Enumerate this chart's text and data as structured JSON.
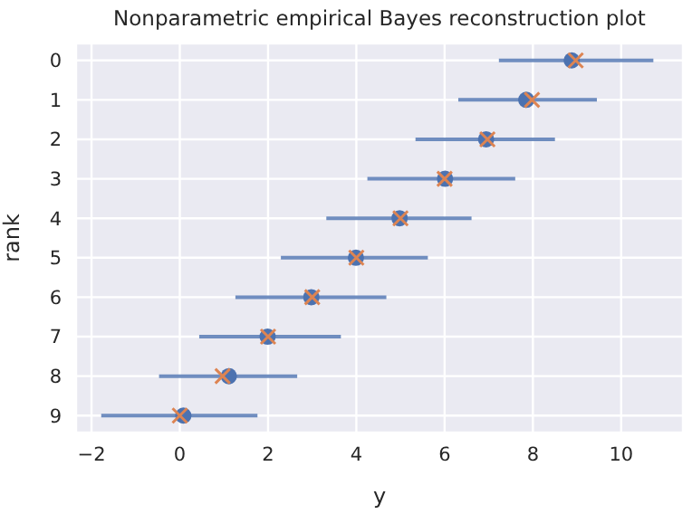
{
  "chart_data": {
    "type": "scatter",
    "title": "Nonparametric empirical Bayes reconstruction plot",
    "xlabel": "y",
    "ylabel": "rank",
    "orientation": "horizontal",
    "categories": [
      "0",
      "1",
      "2",
      "3",
      "4",
      "5",
      "6",
      "7",
      "8",
      "9"
    ],
    "series": [
      {
        "marker": "circle",
        "color": "#4c72b0",
        "values": [
          8.88,
          7.85,
          6.94,
          6.01,
          4.98,
          3.99,
          2.98,
          1.99,
          1.11,
          0.08
        ],
        "errors": [
          [
            7.23,
            10.73
          ],
          [
            6.31,
            9.45
          ],
          [
            5.34,
            8.5
          ],
          [
            4.25,
            7.6
          ],
          [
            3.32,
            6.61
          ],
          [
            2.29,
            5.62
          ],
          [
            1.26,
            4.68
          ],
          [
            0.44,
            3.65
          ],
          [
            -0.47,
            2.66
          ],
          [
            -1.78,
            1.76
          ]
        ]
      },
      {
        "marker": "cross",
        "color": "#dd8452",
        "values": [
          8.97,
          7.98,
          6.97,
          6.0,
          5.0,
          4.0,
          3.0,
          2.0,
          0.97,
          0.0
        ]
      }
    ],
    "xlim": [
      -2.35,
      11.4
    ],
    "xticks": [
      -2,
      0,
      2,
      4,
      6,
      8,
      10
    ],
    "grid": true
  }
}
